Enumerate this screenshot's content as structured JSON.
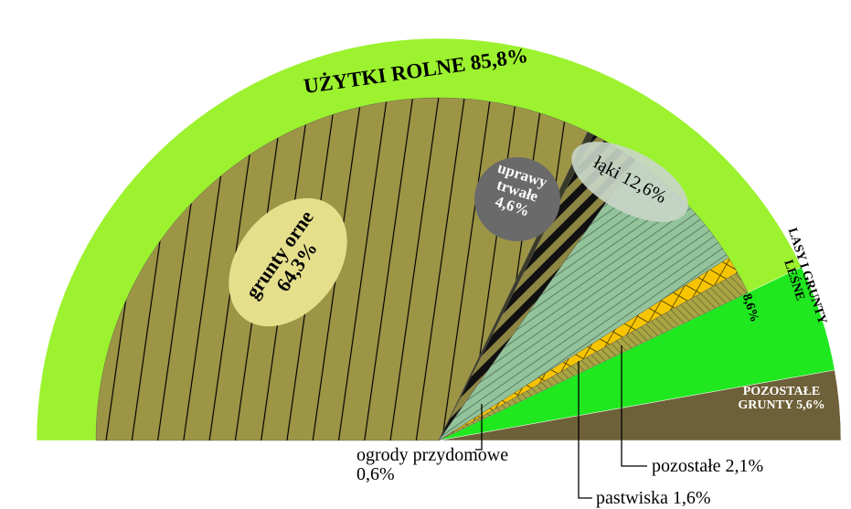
{
  "chart_data": {
    "type": "half_pie",
    "outer": {
      "categories": [
        "UŻYTKI ROLNE",
        "LASY I GRUNTY LEŚNE",
        "POZOSTAŁE GRUNTY"
      ],
      "values": [
        85.8,
        8.6,
        5.6
      ],
      "value_labels": [
        "85,8%",
        "8,6%",
        "5,6%"
      ],
      "colors": [
        "#9cf22e",
        "#1fe81f",
        "#6e6038"
      ]
    },
    "inner": {
      "categories": [
        "grunty orne",
        "ogrody przydomowe",
        "uprawy trwałe",
        "łąki",
        "pastwiska",
        "pozostałe"
      ],
      "values": [
        64.3,
        0.6,
        4.6,
        12.6,
        1.6,
        2.1
      ],
      "value_labels": [
        "64,3%",
        "0,6%",
        "4,6%",
        "12,6%",
        "1,6%",
        "2,1%"
      ],
      "colors": [
        "#9d9546",
        "#3a3a2a",
        "#8c8642",
        "#93c39b",
        "#f7c400",
        "#a9a444"
      ]
    }
  }
}
